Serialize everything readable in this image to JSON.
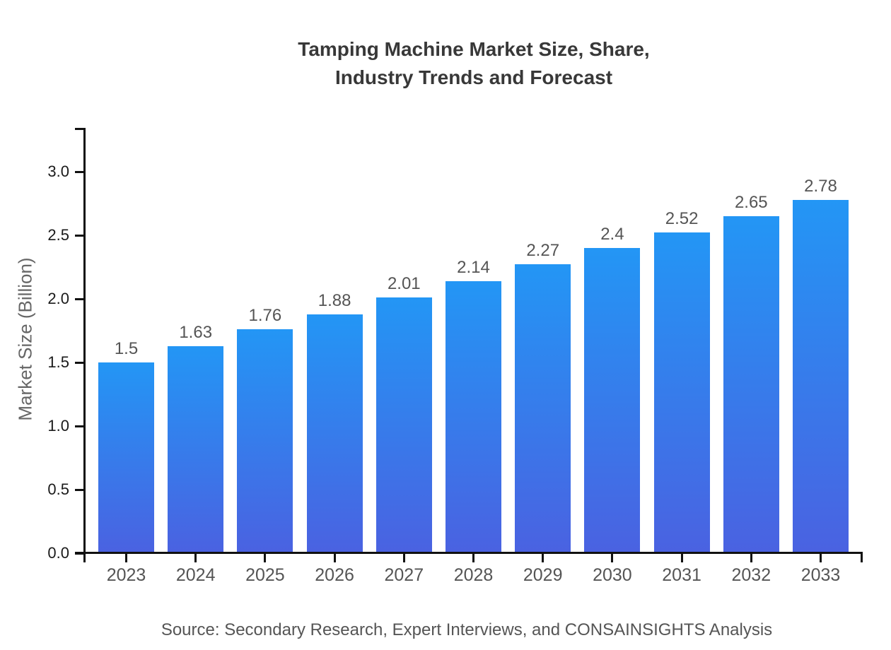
{
  "title": {
    "line1": "Tamping Machine Market Size, Share,",
    "line2": "Industry Trends and Forecast"
  },
  "source": "Source: Secondary Research, Expert Interviews, and CONSAINSIGHTS Analysis",
  "chart_data": {
    "type": "bar",
    "title": "Tamping Machine Market Size, Share, Industry Trends and Forecast",
    "categories": [
      "2023",
      "2024",
      "2025",
      "2026",
      "2027",
      "2028",
      "2029",
      "2030",
      "2031",
      "2032",
      "2033"
    ],
    "values": [
      1.5,
      1.63,
      1.76,
      1.88,
      2.01,
      2.14,
      2.27,
      2.4,
      2.52,
      2.65,
      2.78
    ],
    "bar_labels": [
      "1.5",
      "1.63",
      "1.76",
      "1.88",
      "2.01",
      "2.14",
      "2.27",
      "2.4",
      "2.52",
      "2.65",
      "2.78"
    ],
    "xlabel": "",
    "ylabel": "Market Size (Billion)",
    "yticks": [
      "0.0",
      "0.5",
      "1.0",
      "1.5",
      "2.0",
      "2.5",
      "3.0"
    ],
    "ylim": [
      0,
      3.35
    ],
    "grid": false,
    "legend_position": "none",
    "colors": {
      "bar_gradient_top": "#2396F5",
      "bar_gradient_bottom": "#4A62E1",
      "axis": "#111111",
      "tick_label": "#1a1a1a",
      "category_label": "#555555",
      "value_label": "#555555",
      "axis_title": "#666666",
      "title_text": "#383838",
      "source_text": "#555555",
      "background": "#ffffff"
    }
  }
}
